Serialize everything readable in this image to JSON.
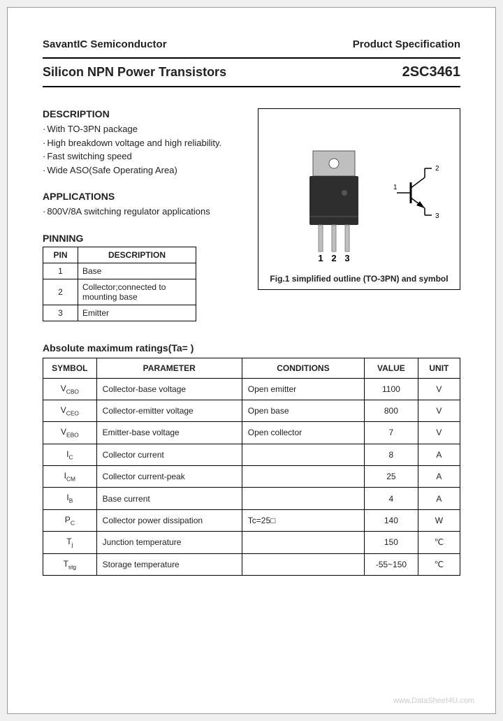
{
  "header": {
    "company": "SavantIC Semiconductor",
    "spec": "Product Specification"
  },
  "title": {
    "left": "Silicon NPN Power Transistors",
    "right": "2SC3461"
  },
  "description": {
    "heading": "DESCRIPTION",
    "items": [
      "With TO-3PN package",
      "High breakdown voltage and high reliability.",
      "Fast switching speed",
      "Wide ASO(Safe Operating Area)"
    ]
  },
  "applications": {
    "heading": "APPLICATIONS",
    "items": [
      "800V/8A switching regulator applications"
    ]
  },
  "pinning": {
    "heading": "PINNING",
    "col_pin": "PIN",
    "col_desc": "DESCRIPTION",
    "rows": [
      {
        "pin": "1",
        "desc": "Base"
      },
      {
        "pin": "2",
        "desc": "Collector;connected to mounting base"
      },
      {
        "pin": "3",
        "desc": "Emitter"
      }
    ]
  },
  "figure": {
    "caption": "Fig.1 simplified outline (TO-3PN) and symbol",
    "pin_labels": [
      "1",
      "2",
      "3"
    ],
    "symbol_labels": [
      "1",
      "2",
      "3"
    ],
    "package_color": "#2e2e2e",
    "package_top_color": "#bfbfbf"
  },
  "ratings": {
    "heading": "Absolute maximum ratings(Ta=  )",
    "columns": [
      "SYMBOL",
      "PARAMETER",
      "CONDITIONS",
      "VALUE",
      "UNIT"
    ],
    "rows": [
      {
        "symbol_main": "V",
        "symbol_sub": "CBO",
        "param": "Collector-base voltage",
        "cond": "Open emitter",
        "value": "1100",
        "unit": "V"
      },
      {
        "symbol_main": "V",
        "symbol_sub": "CEO",
        "param": "Collector-emitter voltage",
        "cond": "Open base",
        "value": "800",
        "unit": "V"
      },
      {
        "symbol_main": "V",
        "symbol_sub": "EBO",
        "param": "Emitter-base voltage",
        "cond": "Open collector",
        "value": "7",
        "unit": "V"
      },
      {
        "symbol_main": "I",
        "symbol_sub": "C",
        "param": "Collector current",
        "cond": "",
        "value": "8",
        "unit": "A"
      },
      {
        "symbol_main": "I",
        "symbol_sub": "CM",
        "param": "Collector current-peak",
        "cond": "",
        "value": "25",
        "unit": "A"
      },
      {
        "symbol_main": "I",
        "symbol_sub": "B",
        "param": "Base current",
        "cond": "",
        "value": "4",
        "unit": "A"
      },
      {
        "symbol_main": "P",
        "symbol_sub": "C",
        "param": "Collector power dissipation",
        "cond": "Tc=25□",
        "value": "140",
        "unit": "W"
      },
      {
        "symbol_main": "T",
        "symbol_sub": "j",
        "param": "Junction temperature",
        "cond": "",
        "value": "150",
        "unit": "℃"
      },
      {
        "symbol_main": "T",
        "symbol_sub": "stg",
        "param": "Storage temperature",
        "cond": "",
        "value": "-55~150",
        "unit": "℃"
      }
    ]
  },
  "watermark": "www.DataSheet4U.com"
}
